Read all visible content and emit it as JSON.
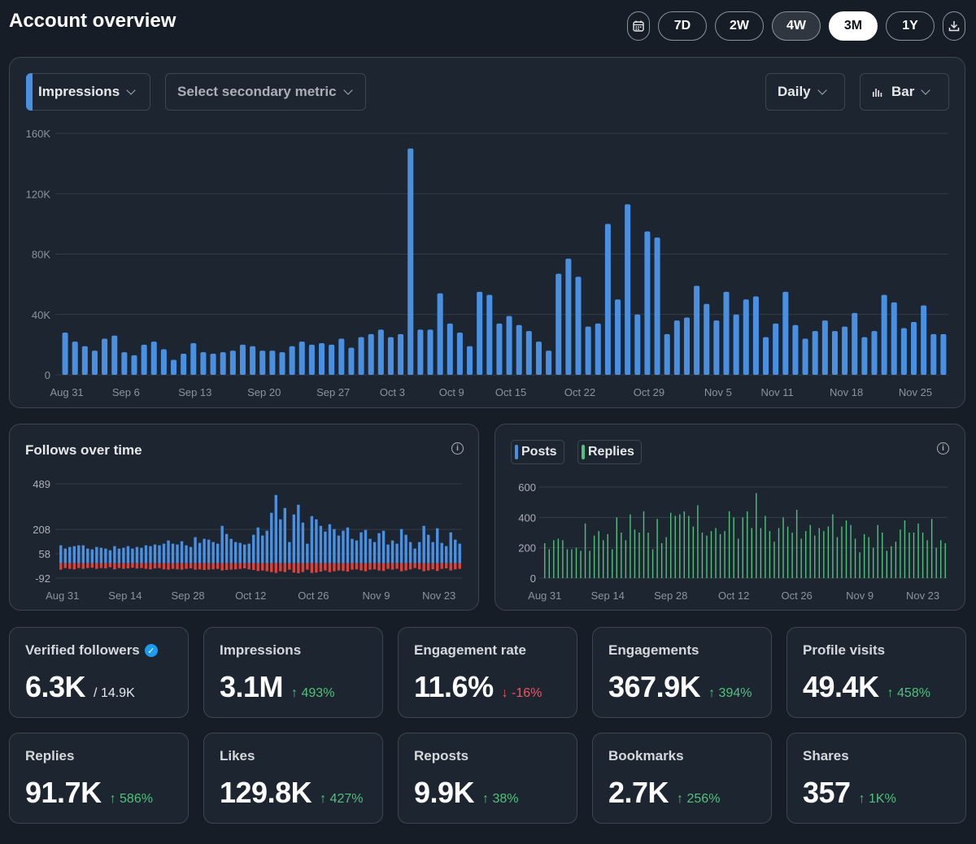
{
  "header": {
    "title": "Account overview",
    "calendar_icon": "calendar-icon",
    "download_icon": "download-icon",
    "ranges": [
      {
        "label": "7D",
        "state": "normal"
      },
      {
        "label": "2W",
        "state": "normal"
      },
      {
        "label": "4W",
        "state": "dim"
      },
      {
        "label": "3M",
        "state": "active"
      },
      {
        "label": "1Y",
        "state": "normal"
      }
    ]
  },
  "main_chart": {
    "primary_metric": "Impressions",
    "secondary_metric_placeholder": "Select secondary metric",
    "interval": "Daily",
    "chart_type": "Bar",
    "bar_color": "#4a90e2"
  },
  "follows": {
    "title": "Follows over time",
    "info_icon": "info-icon",
    "positive_color": "#4a90e2",
    "negative_color": "#e0413b"
  },
  "posts_replies": {
    "legend": [
      {
        "label": "Posts",
        "color": "#4a90e2"
      },
      {
        "label": "Replies",
        "color": "#4fc27c"
      }
    ],
    "info_icon": "info-icon"
  },
  "stats": [
    {
      "label": "Verified followers",
      "value": "6.3K",
      "total": "/ 14.9K",
      "verified": true
    },
    {
      "label": "Impressions",
      "value": "3.1M",
      "change": "↑ 493%",
      "direction": "up"
    },
    {
      "label": "Engagement rate",
      "value": "11.6%",
      "change": "↓ -16%",
      "direction": "down"
    },
    {
      "label": "Engagements",
      "value": "367.9K",
      "change": "↑ 394%",
      "direction": "up"
    },
    {
      "label": "Profile visits",
      "value": "49.4K",
      "change": "↑ 458%",
      "direction": "up"
    },
    {
      "label": "Replies",
      "value": "91.7K",
      "change": "↑ 586%",
      "direction": "up"
    },
    {
      "label": "Likes",
      "value": "129.8K",
      "change": "↑ 427%",
      "direction": "up"
    },
    {
      "label": "Reposts",
      "value": "9.9K",
      "change": "↑ 38%",
      "direction": "up"
    },
    {
      "label": "Bookmarks",
      "value": "2.7K",
      "change": "↑ 256%",
      "direction": "up"
    },
    {
      "label": "Shares",
      "value": "357",
      "change": "↑ 1K%",
      "direction": "up"
    }
  ],
  "chart_data": [
    {
      "type": "bar",
      "title": "Impressions",
      "ylim": [
        0,
        160000
      ],
      "yticks": [
        {
          "value": 0,
          "label": "0"
        },
        {
          "value": 40000,
          "label": "40K"
        },
        {
          "value": 80000,
          "label": "80K"
        },
        {
          "value": 120000,
          "label": "120K"
        },
        {
          "value": 160000,
          "label": "160K"
        }
      ],
      "xticks": [
        {
          "index": 0,
          "label": "Aug 31"
        },
        {
          "index": 6,
          "label": "Sep 6"
        },
        {
          "index": 13,
          "label": "Sep 13"
        },
        {
          "index": 20,
          "label": "Sep 20"
        },
        {
          "index": 27,
          "label": "Sep 27"
        },
        {
          "index": 33,
          "label": "Oct 3"
        },
        {
          "index": 39,
          "label": "Oct 9"
        },
        {
          "index": 45,
          "label": "Oct 15"
        },
        {
          "index": 52,
          "label": "Oct 22"
        },
        {
          "index": 59,
          "label": "Oct 29"
        },
        {
          "index": 66,
          "label": "Nov 5"
        },
        {
          "index": 72,
          "label": "Nov 11"
        },
        {
          "index": 79,
          "label": "Nov 18"
        },
        {
          "index": 86,
          "label": "Nov 25"
        }
      ],
      "values": [
        28000,
        22000,
        19000,
        16000,
        24000,
        26000,
        15000,
        13000,
        20000,
        22000,
        17000,
        10000,
        14000,
        21000,
        15000,
        14000,
        15000,
        16000,
        20000,
        19000,
        16000,
        16000,
        15000,
        19000,
        22000,
        20000,
        21000,
        20000,
        24000,
        18000,
        25000,
        27000,
        30000,
        25000,
        27000,
        150000,
        30000,
        30000,
        54000,
        34000,
        28000,
        19000,
        55000,
        53000,
        34000,
        39000,
        33000,
        29000,
        22000,
        16000,
        67000,
        77000,
        65000,
        32000,
        34000,
        100000,
        50000,
        113000,
        40000,
        95000,
        91000,
        27000,
        36000,
        38000,
        59000,
        47000,
        36000,
        55000,
        40000,
        50000,
        52000,
        25000,
        34000,
        55000,
        33000,
        24000,
        29000,
        36000,
        29000,
        32000,
        41000,
        25000,
        29000,
        53000,
        48000,
        31000,
        35000,
        46000,
        27000,
        27000
      ]
    },
    {
      "type": "bar",
      "title": "Follows over time",
      "ylim": [
        -92,
        489
      ],
      "yticks": [
        {
          "value": -92,
          "label": "-92"
        },
        {
          "value": 58,
          "label": "58"
        },
        {
          "value": 208,
          "label": "208"
        },
        {
          "value": 489,
          "label": "489"
        }
      ],
      "xticks": [
        {
          "index": 0,
          "label": "Aug 31"
        },
        {
          "index": 14,
          "label": "Sep 14"
        },
        {
          "index": 28,
          "label": "Sep 28"
        },
        {
          "index": 42,
          "label": "Oct 12"
        },
        {
          "index": 56,
          "label": "Oct 26"
        },
        {
          "index": 70,
          "label": "Nov 9"
        },
        {
          "index": 84,
          "label": "Nov 23"
        }
      ],
      "series": [
        {
          "name": "Follows",
          "values": [
            110,
            90,
            100,
            105,
            110,
            110,
            90,
            85,
            100,
            95,
            90,
            80,
            105,
            90,
            95,
            105,
            90,
            100,
            95,
            110,
            105,
            115,
            110,
            120,
            140,
            120,
            115,
            135,
            110,
            100,
            160,
            125,
            150,
            145,
            130,
            120,
            230,
            180,
            150,
            130,
            125,
            115,
            120,
            175,
            220,
            170,
            200,
            310,
            420,
            270,
            340,
            130,
            300,
            360,
            250,
            120,
            290,
            270,
            230,
            195,
            240,
            210,
            170,
            200,
            220,
            150,
            140,
            190,
            205,
            150,
            130,
            185,
            200,
            115,
            140,
            120,
            210,
            175,
            130,
            90,
            130,
            230,
            175,
            130,
            215,
            125,
            105,
            190,
            145,
            120
          ]
        },
        {
          "name": "Unfollows",
          "values": [
            -40,
            -30,
            -35,
            -38,
            -30,
            -35,
            -30,
            -28,
            -35,
            -30,
            -32,
            -25,
            -38,
            -30,
            -35,
            -32,
            -28,
            -33,
            -30,
            -35,
            -38,
            -32,
            -30,
            -38,
            -40,
            -35,
            -38,
            -40,
            -35,
            -32,
            -40,
            -38,
            -42,
            -40,
            -38,
            -35,
            -45,
            -42,
            -40,
            -38,
            -35,
            -32,
            -38,
            -42,
            -48,
            -45,
            -50,
            -55,
            -60,
            -50,
            -55,
            -40,
            -58,
            -62,
            -55,
            -40,
            -60,
            -58,
            -52,
            -45,
            -55,
            -50,
            -45,
            -48,
            -52,
            -40,
            -38,
            -45,
            -50,
            -40,
            -38,
            -45,
            -48,
            -35,
            -40,
            -35,
            -50,
            -45,
            -38,
            -30,
            -38,
            -50,
            -45,
            -38,
            -48,
            -35,
            -32,
            -45,
            -38,
            -35
          ]
        }
      ]
    },
    {
      "type": "bar",
      "title": "Posts and Replies",
      "ylim": [
        0,
        600
      ],
      "yticks": [
        {
          "value": 0,
          "label": "0"
        },
        {
          "value": 200,
          "label": "200"
        },
        {
          "value": 400,
          "label": "400"
        },
        {
          "value": 600,
          "label": "600"
        }
      ],
      "xticks": [
        {
          "index": 0,
          "label": "Aug 31"
        },
        {
          "index": 14,
          "label": "Sep 14"
        },
        {
          "index": 28,
          "label": "Sep 28"
        },
        {
          "index": 42,
          "label": "Oct 12"
        },
        {
          "index": 56,
          "label": "Oct 26"
        },
        {
          "index": 70,
          "label": "Nov 9"
        },
        {
          "index": 84,
          "label": "Nov 23"
        }
      ],
      "series": [
        {
          "name": "Posts",
          "values": []
        },
        {
          "name": "Replies",
          "values": [
            230,
            190,
            250,
            260,
            250,
            190,
            190,
            200,
            180,
            360,
            180,
            280,
            310,
            250,
            290,
            190,
            400,
            300,
            250,
            420,
            320,
            300,
            440,
            300,
            190,
            390,
            230,
            270,
            430,
            410,
            420,
            440,
            410,
            340,
            480,
            300,
            280,
            310,
            330,
            290,
            310,
            440,
            400,
            260,
            400,
            440,
            330,
            560,
            330,
            410,
            310,
            240,
            330,
            400,
            340,
            300,
            450,
            260,
            310,
            350,
            280,
            330,
            310,
            340,
            420,
            270,
            340,
            380,
            350,
            260,
            170,
            290,
            270,
            200,
            350,
            300,
            180,
            210,
            240,
            320,
            380,
            300,
            300,
            360,
            300,
            250,
            390,
            200,
            250,
            230
          ]
        }
      ]
    }
  ]
}
